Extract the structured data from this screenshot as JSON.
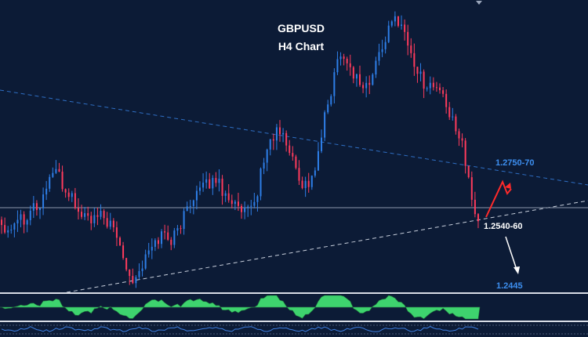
{
  "header": {
    "symbol": "GBPUSD",
    "timeframe": "H4 Chart"
  },
  "levels": {
    "resistance": "1.2750-70",
    "current_support": "1.2540-60",
    "target": "1.2445"
  },
  "colors": {
    "background": "#0c1b36",
    "bull_candle": "#2e7fe8",
    "bear_candle": "#ff3b5c",
    "resistance_label": "#3d8ff0",
    "support_label": "#ffffff",
    "target_label": "#3d8ff0",
    "oscillator_fill": "#3ed36e",
    "up_arrow": "#ff2a2a",
    "down_arrow": "#ffffff"
  },
  "chart_data": {
    "type": "line",
    "title": "GBPUSD",
    "subtitle": "H4 Chart",
    "series": [
      {
        "values": [
          1.2585,
          1.2575,
          1.26,
          1.2595,
          1.262,
          1.2615,
          1.2665,
          1.269,
          1.265,
          1.264,
          1.2605,
          1.26,
          1.259,
          1.26,
          1.2585,
          1.256,
          1.252,
          1.248,
          1.25,
          1.253,
          1.255,
          1.257,
          1.2555,
          1.2575,
          1.261,
          1.264,
          1.265,
          1.266,
          1.267,
          1.264,
          1.263,
          1.2605,
          1.2605,
          1.2625,
          1.27,
          1.274,
          1.276,
          1.2735,
          1.27,
          1.266,
          1.266,
          1.2695,
          1.278,
          1.284,
          1.291,
          1.288,
          1.286,
          1.284,
          1.2845,
          1.29,
          1.293,
          1.2965,
          1.296,
          1.291,
          1.287,
          1.2845,
          1.284,
          1.2835,
          1.279,
          1.277,
          1.2735,
          1.2635,
          1.259
        ]
      }
    ]
  }
}
